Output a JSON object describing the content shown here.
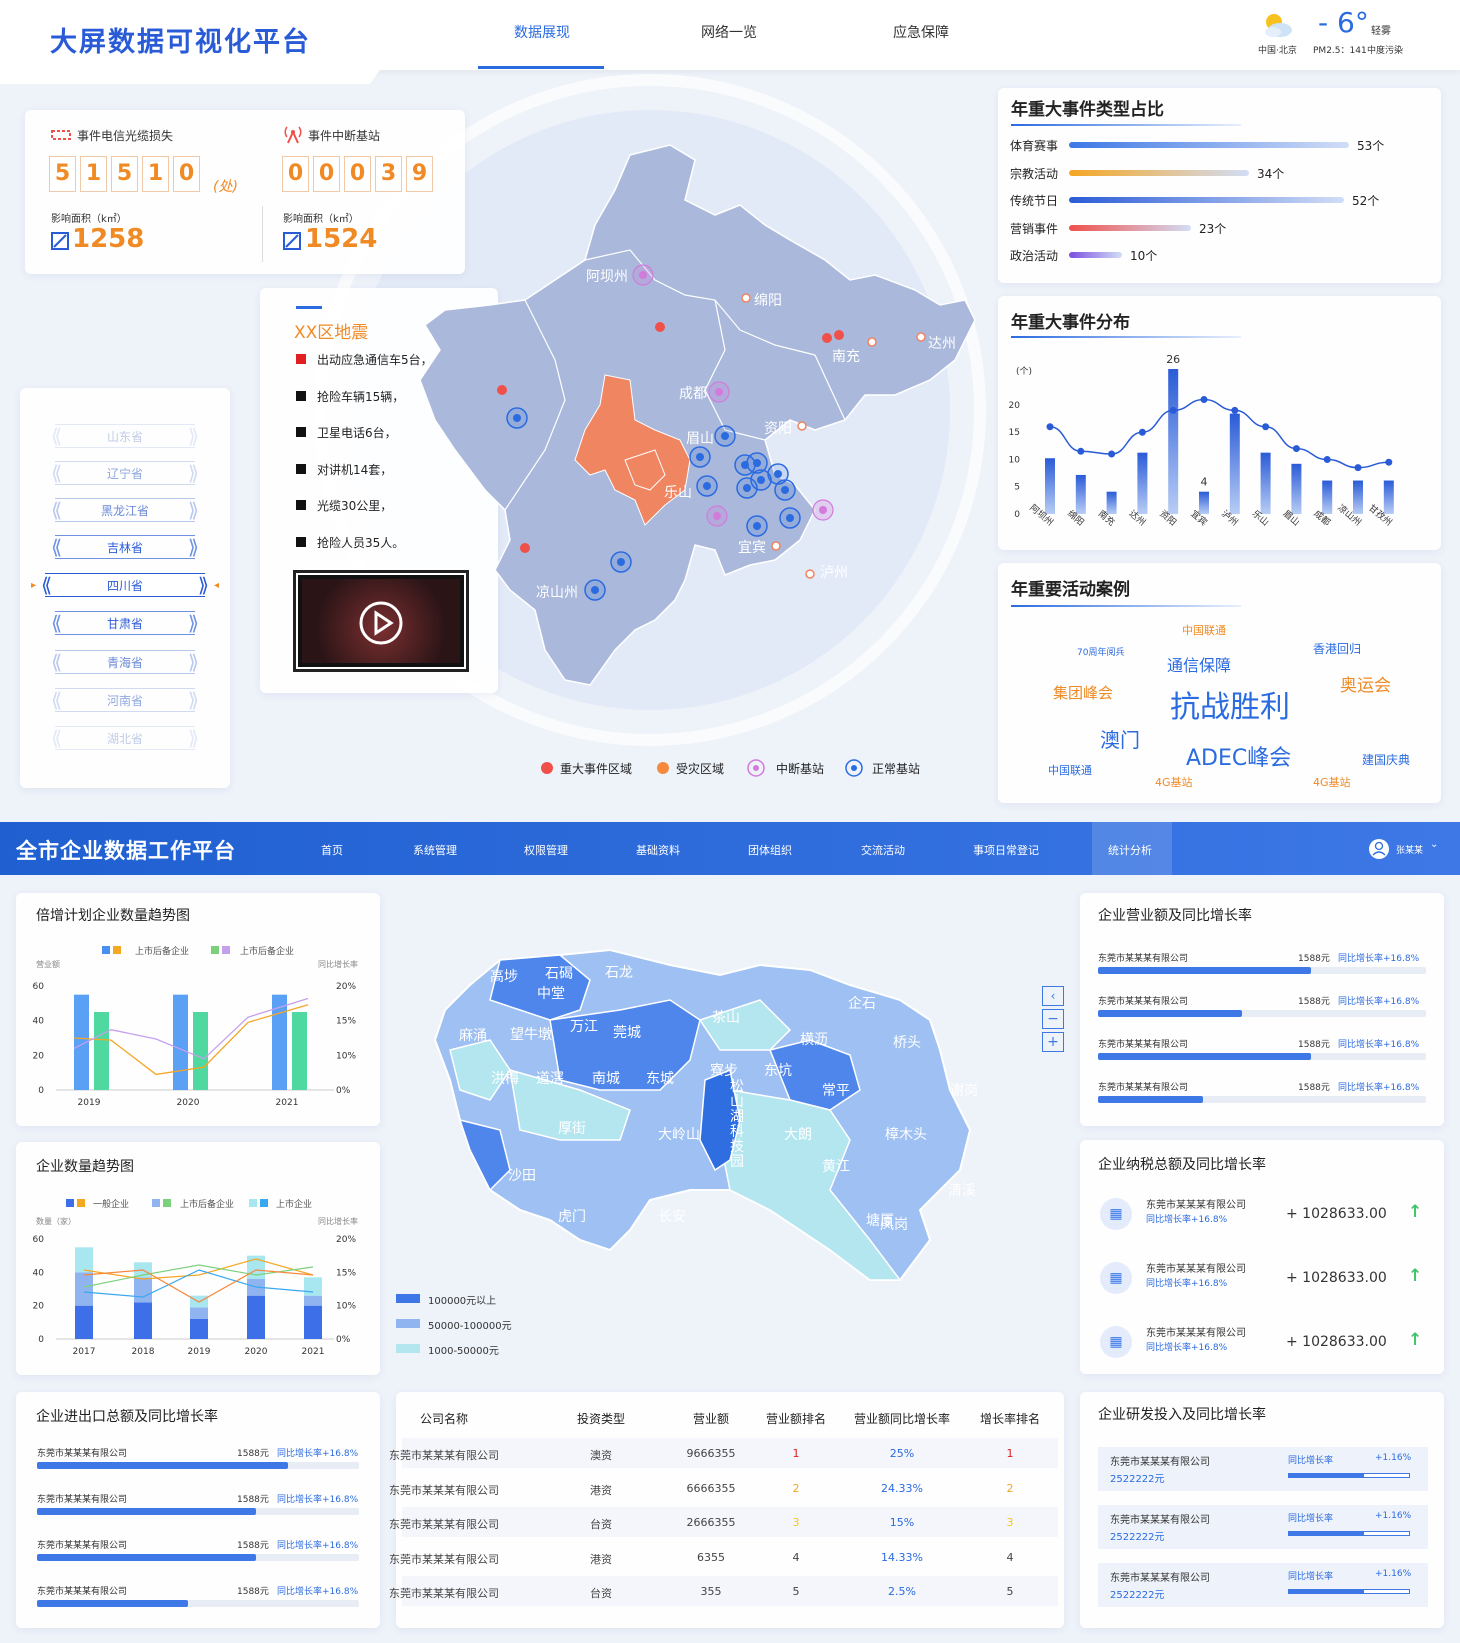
{
  "header": {
    "title": "大屏数据可视化平台",
    "nav": [
      "数据展现",
      "网络一览",
      "应急保障"
    ],
    "active_nav": 0,
    "weather": {
      "temp": "- 6°",
      "desc": "轻雾",
      "city": "中国·北京",
      "pm": "PM2.5：141",
      "pollution": "中度污染"
    }
  },
  "loss": {
    "cable": {
      "label": "事件电信光缆损失",
      "digits": [
        "5",
        "1",
        "5",
        "1",
        "0"
      ],
      "unit": "(处)",
      "area_label": "影响面积（k㎡）",
      "area": "1258"
    },
    "station": {
      "label": "事件中断基站",
      "digits": [
        "0",
        "0",
        "0",
        "3",
        "9"
      ],
      "area_label": "影响面积（k㎡）",
      "area": "1524"
    }
  },
  "provinces": [
    "山东省",
    "辽宁省",
    "黑龙江省",
    "吉林省",
    "四川省",
    "甘肃省",
    "青海省",
    "河南省",
    "湖北省"
  ],
  "selected_province": 4,
  "quake": {
    "title": "XX区地震",
    "items": [
      "出动应急通信车5台，",
      "抢险车辆15辆，",
      "卫星电话6台，",
      "对讲机14套，",
      "光缆30公里，",
      "抢险人员35人。"
    ]
  },
  "map1": {
    "regions": [
      "阿坝州",
      "绵阳",
      "南充",
      "达州",
      "成都",
      "资阳",
      "眉山",
      "乐山",
      "宜宾",
      "泸州",
      "凉山州"
    ],
    "legend": [
      "重大事件区域",
      "受灾区域",
      "中断基站",
      "正常基站"
    ]
  },
  "event_types": {
    "title": "年重大事件类型占比",
    "items": [
      {
        "label": "体育赛事",
        "value": 53,
        "text": "53个",
        "color": "#3d78e6"
      },
      {
        "label": "宗教活动",
        "value": 34,
        "text": "34个",
        "color": "#f5a623"
      },
      {
        "label": "传统节日",
        "value": 52,
        "text": "52个",
        "color": "#2a5bd7"
      },
      {
        "label": "营销事件",
        "value": 23,
        "text": "23个",
        "color": "#f0504a"
      },
      {
        "label": "政治活动",
        "value": 10,
        "text": "10个",
        "color": "#7b4fe0"
      }
    ]
  },
  "event_dist": {
    "title": "年重大事件分布",
    "unit": "(个)",
    "chart_data": {
      "type": "bar",
      "categories": [
        "阿坝州",
        "绵阳",
        "南充",
        "达州",
        "资阳",
        "宜宾",
        "泸州",
        "乐山",
        "眉山",
        "成都",
        "凉山州",
        "甘孜州"
      ],
      "bars": [
        10,
        7,
        4,
        11,
        26,
        4,
        18,
        11,
        9,
        6,
        6,
        6
      ],
      "line": [
        16,
        11.5,
        11,
        15,
        19,
        21,
        19,
        16,
        12,
        10,
        8.5,
        9.5
      ],
      "ylim": [
        0,
        25
      ],
      "yticks": [
        0,
        5,
        10,
        15,
        20
      ]
    }
  },
  "cases": {
    "title": "年重要活动案例",
    "words": [
      {
        "t": "中国联通",
        "s": 11,
        "c": "#f08a24"
      },
      {
        "t": "70周年阅兵",
        "s": 9,
        "c": "#2a6be0"
      },
      {
        "t": "香港回归",
        "s": 12,
        "c": "#2a6be0"
      },
      {
        "t": "通信保障",
        "s": 16,
        "c": "#2a6be0"
      },
      {
        "t": "集团峰会",
        "s": 15,
        "c": "#f08a24"
      },
      {
        "t": "抗战胜利",
        "s": 30,
        "c": "#2a6be0"
      },
      {
        "t": "奥运会",
        "s": 17,
        "c": "#f08a24"
      },
      {
        "t": "澳门",
        "s": 20,
        "c": "#2a6be0"
      },
      {
        "t": "ADEC峰会",
        "s": 22,
        "c": "#2a6be0"
      },
      {
        "t": "中国联通",
        "s": 11,
        "c": "#2a6be0"
      },
      {
        "t": "4G基站",
        "s": 11,
        "c": "#f08a24"
      },
      {
        "t": "建国庆典",
        "s": 12,
        "c": "#2a6be0"
      },
      {
        "t": "4G基站",
        "s": 11,
        "c": "#f08a24"
      }
    ]
  },
  "platform": {
    "title": "全市企业数据工作平台",
    "nav": [
      "首页",
      "系统管理",
      "权限管理",
      "基础资料",
      "团体组织",
      "交流活动",
      "事项日常登记",
      "统计分析"
    ],
    "active_nav": 7,
    "user": "张某某"
  },
  "trend_chart": {
    "title": "倍增计划企业数量趋势图",
    "legend": [
      "上市后备企业",
      "上市后备企业"
    ],
    "ylabel_left": "营业额",
    "ylabel_right": "同比增长率",
    "chart_data": {
      "type": "bar",
      "categories": [
        "2019",
        "2020",
        "2021"
      ],
      "series_a": [
        55,
        55,
        55
      ],
      "series_b": [
        45,
        45,
        45
      ],
      "line_a": [
        50,
        48,
        15,
        22,
        65,
        82
      ],
      "line_b": [
        40,
        58,
        49,
        30,
        70,
        88
      ],
      "yticks_left": [
        0,
        20,
        40,
        60
      ],
      "yticks_right": [
        "0%",
        "10%",
        "15%",
        "20%"
      ]
    }
  },
  "count_chart": {
    "title": "企业数量趋势图",
    "legend": [
      "一般企业",
      "上市后备企业",
      "上市企业"
    ],
    "ylabel_left": "数量（家）",
    "ylabel_right": "同比增长率",
    "chart_data": {
      "type": "bar",
      "categories": [
        "2017",
        "2018",
        "2019",
        "2020",
        "2021"
      ],
      "bottom": [
        20,
        22,
        12,
        26,
        20
      ],
      "top": [
        20,
        15,
        7,
        10,
        6
      ],
      "extra": [
        15,
        9,
        7,
        14,
        11
      ],
      "yticks_left": [
        0,
        20,
        40,
        60
      ],
      "yticks_right": [
        "0%",
        "10%",
        "15%",
        "20%"
      ]
    }
  },
  "export_list": {
    "title": "企业进出口总额及同比增长率",
    "items": [
      {
        "name": "东莞市某某某有限公司",
        "amount": "1588元",
        "yoy": "同比增长率+16.8%",
        "pct": 0.78
      },
      {
        "name": "东莞市某某某有限公司",
        "amount": "1588元",
        "yoy": "同比增长率+16.8%",
        "pct": 0.68
      },
      {
        "name": "东莞市某某某有限公司",
        "amount": "1588元",
        "yoy": "同比增长率+16.8%",
        "pct": 0.68
      },
      {
        "name": "东莞市某某某有限公司",
        "amount": "1588元",
        "yoy": "同比增长率+16.8%",
        "pct": 0.47
      }
    ]
  },
  "map2": {
    "districts": [
      "高埗",
      "石碣",
      "石龙",
      "中堂",
      "万江",
      "莞城",
      "望牛墩",
      "茶山",
      "企石",
      "横沥",
      "桥头",
      "洪梅",
      "道滘",
      "南城",
      "东城",
      "寮步",
      "东坑",
      "常平",
      "谢岗",
      "麻涌",
      "松山湖科技园",
      "大岭山",
      "大朗",
      "樟木头",
      "沙田",
      "黄江",
      "虎门",
      "长安",
      "清溪",
      "凤岗",
      "塘厦",
      "厚街"
    ],
    "legend": [
      "100000元以上",
      "50000-100000元",
      "1000-50000元"
    ]
  },
  "revenue_list": {
    "title": "企业营业额及同比增长率",
    "items": [
      {
        "name": "东莞市某某某有限公司",
        "amount": "1588元",
        "yoy": "同比增长率+16.8%",
        "pct": 0.65
      },
      {
        "name": "东莞市某某某有限公司",
        "amount": "1588元",
        "yoy": "同比增长率+16.8%",
        "pct": 0.44
      },
      {
        "name": "东莞市某某某有限公司",
        "amount": "1588元",
        "yoy": "同比增长率+16.8%",
        "pct": 0.65
      },
      {
        "name": "东莞市某某某有限公司",
        "amount": "1588元",
        "yoy": "同比增长率+16.8%",
        "pct": 0.32
      }
    ]
  },
  "tax_list": {
    "title": "企业纳税总额及同比增长率",
    "items": [
      {
        "name": "东莞市某某某有限公司",
        "yoy": "同比增长率+16.8%",
        "value": "+ 1028633.00"
      },
      {
        "name": "东莞市某某某有限公司",
        "yoy": "同比增长率+16.8%",
        "value": "+ 1028633.00"
      },
      {
        "name": "东莞市某某某有限公司",
        "yoy": "同比增长率+16.8%",
        "value": "+ 1028633.00"
      }
    ]
  },
  "table": {
    "headers": [
      "公司名称",
      "投资类型",
      "营业额",
      "营业额排名",
      "营业额同比增长率",
      "增长率排名"
    ],
    "rows": [
      [
        "东莞市某某某有限公司",
        "澳资",
        "9666355",
        "1",
        "25%",
        "1"
      ],
      [
        "东莞市某某某有限公司",
        "港资",
        "6666355",
        "2",
        "24.33%",
        "2"
      ],
      [
        "东莞市某某某有限公司",
        "台资",
        "2666355",
        "3",
        "15%",
        "3"
      ],
      [
        "东莞市某某某有限公司",
        "港资",
        "6355",
        "4",
        "14.33%",
        "4"
      ],
      [
        "东莞市某某某有限公司",
        "台资",
        "355",
        "5",
        "2.5%",
        "5"
      ]
    ]
  },
  "rd_list": {
    "title": "企业研发投入及同比增长率",
    "items": [
      {
        "name": "东莞市某某某有限公司",
        "value": "2522222元",
        "yoy_label": "同比增长率",
        "yoy": "+1.16%",
        "pct": 0.62
      },
      {
        "name": "东莞市某某某有限公司",
        "value": "2522222元",
        "yoy_label": "同比增长率",
        "yoy": "+1.16%",
        "pct": 0.62
      },
      {
        "name": "东莞市某某某有限公司",
        "value": "2522222元",
        "yoy_label": "同比增长率",
        "yoy": "+1.16%",
        "pct": 0.62
      }
    ]
  }
}
